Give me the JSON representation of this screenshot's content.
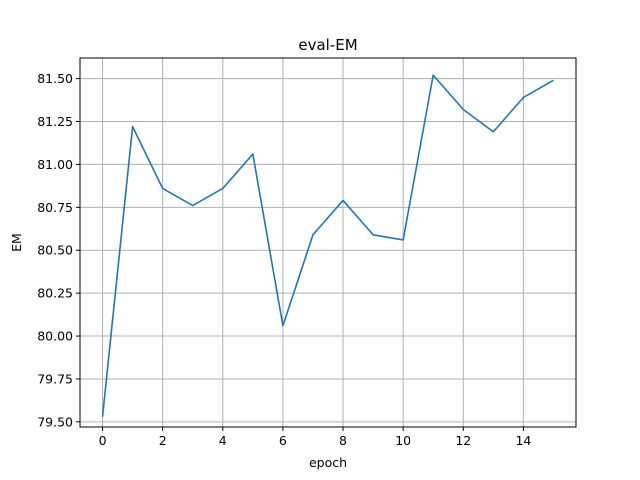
{
  "chart_data": {
    "type": "line",
    "title": "eval-EM",
    "xlabel": "epoch",
    "ylabel": "EM",
    "x": [
      0,
      1,
      2,
      3,
      4,
      5,
      6,
      7,
      8,
      9,
      10,
      11,
      12,
      13,
      14,
      15
    ],
    "series": [
      {
        "values": [
          79.53,
          81.22,
          80.86,
          80.76,
          80.86,
          81.06,
          80.06,
          80.59,
          80.79,
          80.59,
          80.56,
          81.52,
          81.32,
          81.19,
          81.39,
          81.49
        ],
        "color": "#1f77b4"
      }
    ],
    "xlim": [
      -0.75,
      15.75
    ],
    "ylim": [
      79.47,
      81.62
    ],
    "xticks": [
      0,
      2,
      4,
      6,
      8,
      10,
      12,
      14
    ],
    "xtick_labels": [
      "0",
      "2",
      "4",
      "6",
      "8",
      "10",
      "12",
      "14"
    ],
    "yticks": [
      79.5,
      79.75,
      80.0,
      80.25,
      80.5,
      80.75,
      81.0,
      81.25,
      81.5
    ],
    "ytick_labels": [
      "79.50",
      "79.75",
      "80.00",
      "80.25",
      "80.50",
      "80.75",
      "81.00",
      "81.25",
      "81.50"
    ],
    "grid": true,
    "legend": "none"
  }
}
